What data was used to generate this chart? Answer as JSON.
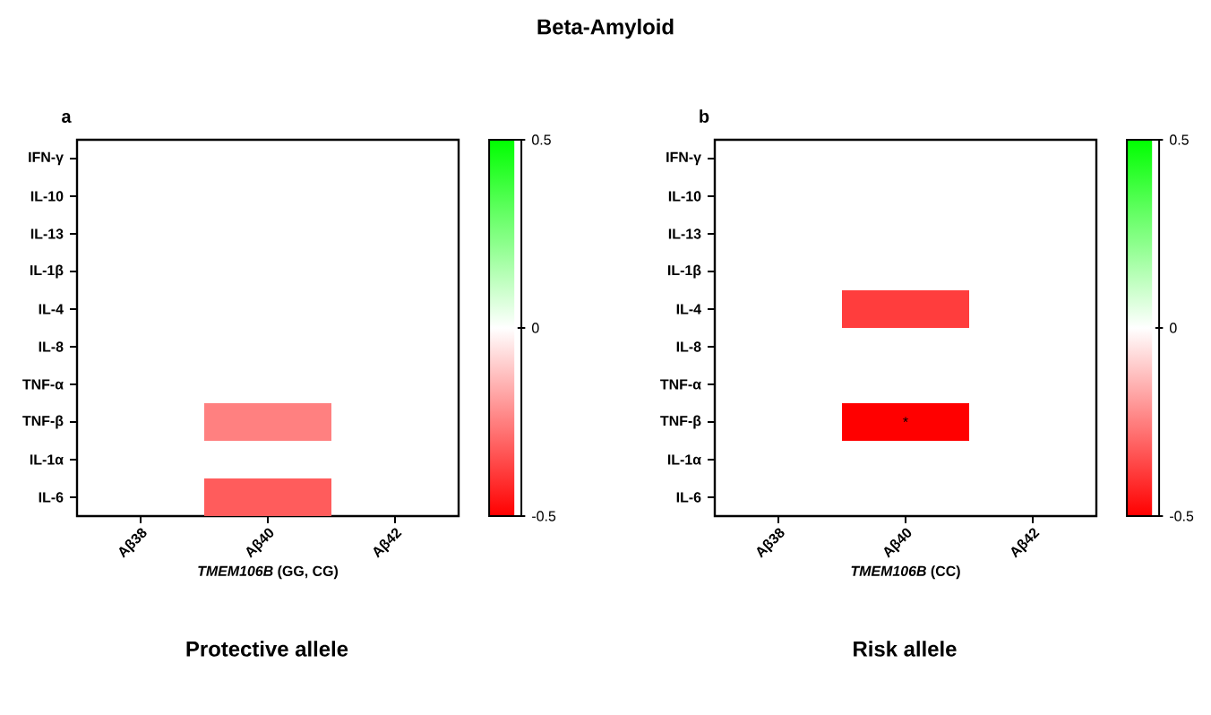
{
  "chart_data": [
    {
      "type": "other",
      "title": "Beta-Amyloid"
    },
    {
      "type": "heatmap",
      "subtitle": "a",
      "xlabel": "*TMEM106B* (GG, CG)",
      "annotations": [
        "Protective allele"
      ],
      "categories": [
        "Aβ38",
        "Aβ40",
        "Aβ42"
      ],
      "y_categories": [
        "IFN-γ",
        "IL-10",
        "IL-13",
        "IL-1β",
        "IL-4",
        "IL-8",
        "TNF-α",
        "TNF-β",
        "IL-1α",
        "IL-6"
      ],
      "cells": [
        [
          null,
          null,
          null
        ],
        [
          null,
          null,
          null
        ],
        [
          null,
          null,
          null
        ],
        [
          null,
          null,
          null
        ],
        [
          null,
          null,
          null
        ],
        [
          null,
          null,
          null
        ],
        [
          null,
          null,
          null
        ],
        [
          null,
          -0.25,
          null
        ],
        [
          null,
          null,
          null
        ],
        [
          null,
          -0.32,
          null
        ]
      ],
      "clim": [
        -0.5,
        0.5
      ],
      "cticks": [
        -0.5,
        0,
        0.5
      ]
    },
    {
      "type": "heatmap",
      "subtitle": "b",
      "xlabel": "*TMEM106B* (CC)",
      "annotations": [
        "Risk allele"
      ],
      "categories": [
        "Aβ38",
        "Aβ40",
        "Aβ42"
      ],
      "y_categories": [
        "IFN-γ",
        "IL-10",
        "IL-13",
        "IL-1β",
        "IL-4",
        "IL-8",
        "TNF-α",
        "TNF-β",
        "IL-1α",
        "IL-6"
      ],
      "cells": [
        [
          null,
          null,
          null
        ],
        [
          null,
          null,
          null
        ],
        [
          null,
          null,
          null
        ],
        [
          null,
          null,
          null
        ],
        [
          null,
          -0.38,
          null
        ],
        [
          null,
          null,
          null
        ],
        [
          null,
          null,
          null
        ],
        [
          null,
          -0.5,
          null
        ],
        [
          null,
          null,
          null
        ],
        [
          null,
          null,
          null
        ]
      ],
      "cell_labels": [
        [
          null,
          null,
          null
        ],
        [
          null,
          null,
          null
        ],
        [
          null,
          null,
          null
        ],
        [
          null,
          null,
          null
        ],
        [
          null,
          null,
          null
        ],
        [
          null,
          null,
          null
        ],
        [
          null,
          null,
          null
        ],
        [
          null,
          "*",
          null
        ],
        [
          null,
          null,
          null
        ],
        [
          null,
          null,
          null
        ]
      ],
      "clim": [
        -0.5,
        0.5
      ],
      "cticks": [
        -0.5,
        0,
        0.5
      ]
    }
  ]
}
